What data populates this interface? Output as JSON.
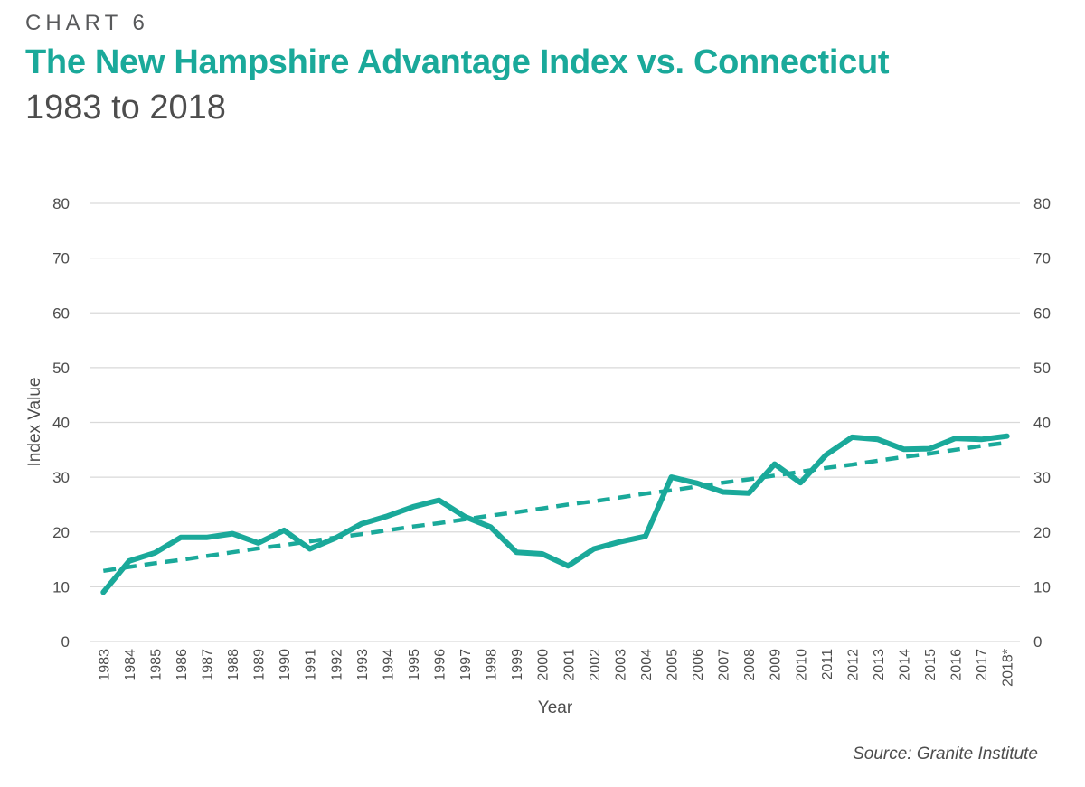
{
  "header": {
    "kicker": "CHART 6",
    "title": "The New Hampshire Advantage Index vs. Connecticut",
    "subtitle": "1983 to 2018"
  },
  "source": "Source: Granite Institute",
  "colors": {
    "accent": "#1aa99a",
    "grid": "#d9d9d9",
    "text": "#4d4d4d"
  },
  "chart_data": {
    "type": "line",
    "title": "The New Hampshire Advantage Index vs. Connecticut",
    "xlabel": "Year",
    "ylabel": "Index Value",
    "ylim": [
      0,
      80
    ],
    "yticks": [
      0,
      10,
      20,
      30,
      40,
      50,
      60,
      70,
      80
    ],
    "grid": true,
    "secondary_y_axis": true,
    "categories": [
      "1983",
      "1984",
      "1985",
      "1986",
      "1987",
      "1988",
      "1989",
      "1990",
      "1991",
      "1992",
      "1993",
      "1994",
      "1995",
      "1996",
      "1997",
      "1998",
      "1999",
      "2000",
      "2001",
      "2002",
      "2003",
      "2004",
      "2005",
      "2006",
      "2007",
      "2008",
      "2009",
      "2010",
      "2011",
      "2012",
      "2013",
      "2014",
      "2015",
      "2016",
      "2017",
      "2018*"
    ],
    "series": [
      {
        "style": "solid",
        "values": [
          9,
          14.7,
          16.2,
          19,
          19,
          19.7,
          18,
          20.3,
          16.9,
          18.9,
          21.5,
          22.9,
          24.6,
          25.8,
          22.8,
          20.9,
          16.3,
          16,
          13.8,
          16.9,
          18.2,
          19.2,
          30,
          28.9,
          27.3,
          27.1,
          32.4,
          29,
          34.1,
          37.3,
          36.9,
          35.1,
          35.2,
          37.1,
          36.9,
          37.5
        ]
      },
      {
        "style": "dashed",
        "values": [
          12.9,
          13.6,
          14.3,
          14.9,
          15.6,
          16.3,
          17.0,
          17.6,
          18.3,
          19.0,
          19.6,
          20.3,
          21.0,
          21.6,
          22.3,
          23.0,
          23.6,
          24.3,
          25.0,
          25.6,
          26.3,
          27.0,
          27.6,
          28.3,
          29.0,
          29.6,
          30.3,
          31.0,
          31.7,
          32.3,
          33.0,
          33.7,
          34.3,
          35.0,
          35.7,
          36.3
        ]
      }
    ]
  }
}
